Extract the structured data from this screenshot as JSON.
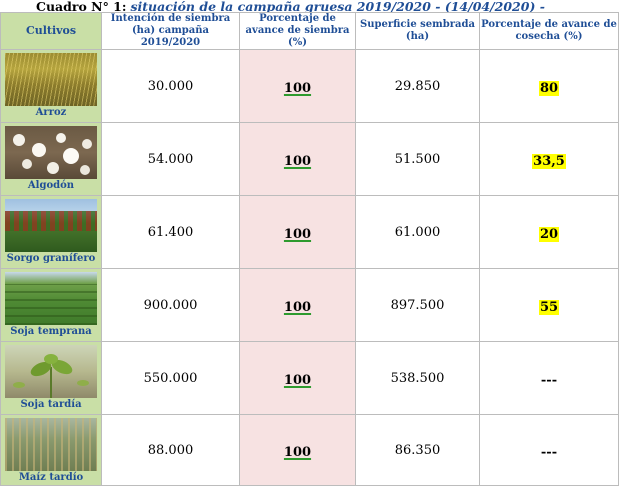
{
  "caption": {
    "lead": "Cuadro N° 1:",
    "title": "situación de la campaña gruesa 2019/2020 - (14/04/2020) -"
  },
  "table": {
    "headers": {
      "crop": "Cultivos",
      "intention": "Intención de siembra (ha) campaña 2019/2020",
      "sowing_progress": "Porcentaje de avance de siembra (%)",
      "sown_area": "Superficie sembrada (ha)",
      "harvest_progress": "Porcentaje de avance de cosecha (%)"
    },
    "rows": [
      {
        "crop": "Arroz",
        "image": "rice-field-photo",
        "intention": "30.000",
        "sowing": "100",
        "sown": "29.850",
        "harvest": "80"
      },
      {
        "crop": "Algodón",
        "image": "cotton-bolls-photo",
        "intention": "54.000",
        "sowing": "100",
        "sown": "51.500",
        "harvest": "33,5"
      },
      {
        "crop": "Sorgo granífero",
        "image": "sorghum-field-photo",
        "intention": "61.400",
        "sowing": "100",
        "sown": "61.000",
        "harvest": "20"
      },
      {
        "crop": "Soja temprana",
        "image": "early-soybean-field-photo",
        "intention": "900.000",
        "sowing": "100",
        "sown": "897.500",
        "harvest": "55"
      },
      {
        "crop": "Soja tardía",
        "image": "late-soybean-plant-photo",
        "intention": "550.000",
        "sowing": "100",
        "sown": "538.500",
        "harvest": "---"
      },
      {
        "crop": "Maíz tardío",
        "image": "late-corn-field-photo",
        "intention": "88.000",
        "sowing": "100",
        "sown": "86.350",
        "harvest": "---"
      }
    ]
  },
  "colors": {
    "crop_column_bg": "#c9dfa6",
    "sowing_column_bg": "#f7e2e2",
    "header_text": "#1f4e96",
    "highlight": "#ffff00",
    "underline": "#2e9a2e"
  }
}
